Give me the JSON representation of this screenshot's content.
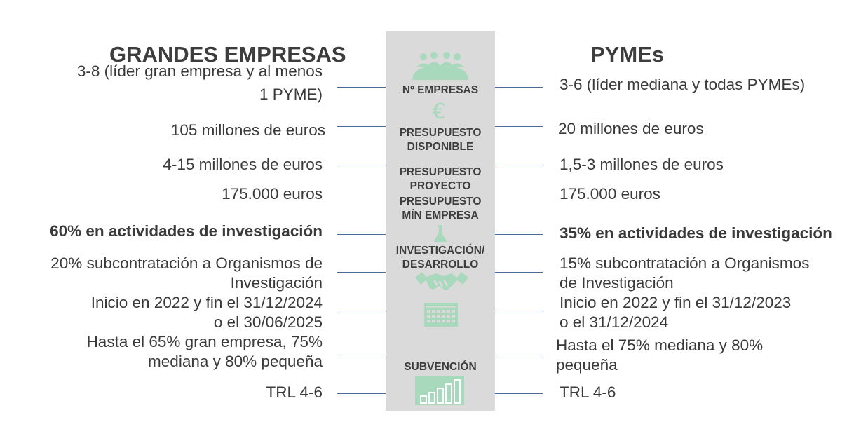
{
  "headers": {
    "left": "GRANDES EMPRESAS",
    "right": "PYMEs"
  },
  "center_labels": {
    "num_empresas": "Nº EMPRESAS",
    "presupuesto_disponible": [
      "PRESUPUESTO",
      "DISPONIBLE"
    ],
    "presupuesto_proyecto": [
      "PRESUPUESTO",
      "PROYECTO"
    ],
    "presupuesto_min": [
      "PRESUPUESTO",
      "MÍN EMPRESA"
    ],
    "investigacion": [
      "INVESTIGACIÓN/",
      "DESARROLLO"
    ],
    "subvencion": "SUBVENCIÓN"
  },
  "icons": {
    "people": "group-icon",
    "euro": "€",
    "euro_name": "euro-icon",
    "flask": "flask-icon",
    "handshake": "handshake-icon",
    "calendar": "calendar-icon",
    "chart": "bar-chart-icon"
  },
  "left": {
    "num_empresas": [
      "3-8 (líder gran empresa y al menos",
      "1 PYME)"
    ],
    "presupuesto_disponible": "105 millones de euros",
    "presupuesto_proyecto": "4-15 millones de euros",
    "presupuesto_min": "175.000 euros",
    "investigacion": "60% en actividades de investigación",
    "subcontratacion": [
      "20% subcontratación a Organismos de",
      "Investigación"
    ],
    "plazo": [
      "Inicio en 2022 y fin el 31/12/2024",
      "o el 30/06/2025"
    ],
    "subvencion": [
      "Hasta el 65% gran empresa, 75%",
      "mediana  y 80% pequeña"
    ],
    "trl": "TRL 4-6"
  },
  "right": {
    "num_empresas": "3-6 (líder mediana y todas PYMEs)",
    "presupuesto_disponible": "20 millones de euros",
    "presupuesto_proyecto": "1,5-3 millones de euros",
    "presupuesto_min": "175.000 euros",
    "investigacion": "35% en actividades de investigación",
    "subcontratacion": [
      "15% subcontratación a Organismos",
      "de Investigación"
    ],
    "plazo": [
      "Inicio en 2022 y fin el 31/12/2023",
      "o el 31/12/2024"
    ],
    "subvencion": [
      "Hasta el 75% mediana  y 80%",
      "pequeña"
    ],
    "trl": "TRL 4-6"
  }
}
